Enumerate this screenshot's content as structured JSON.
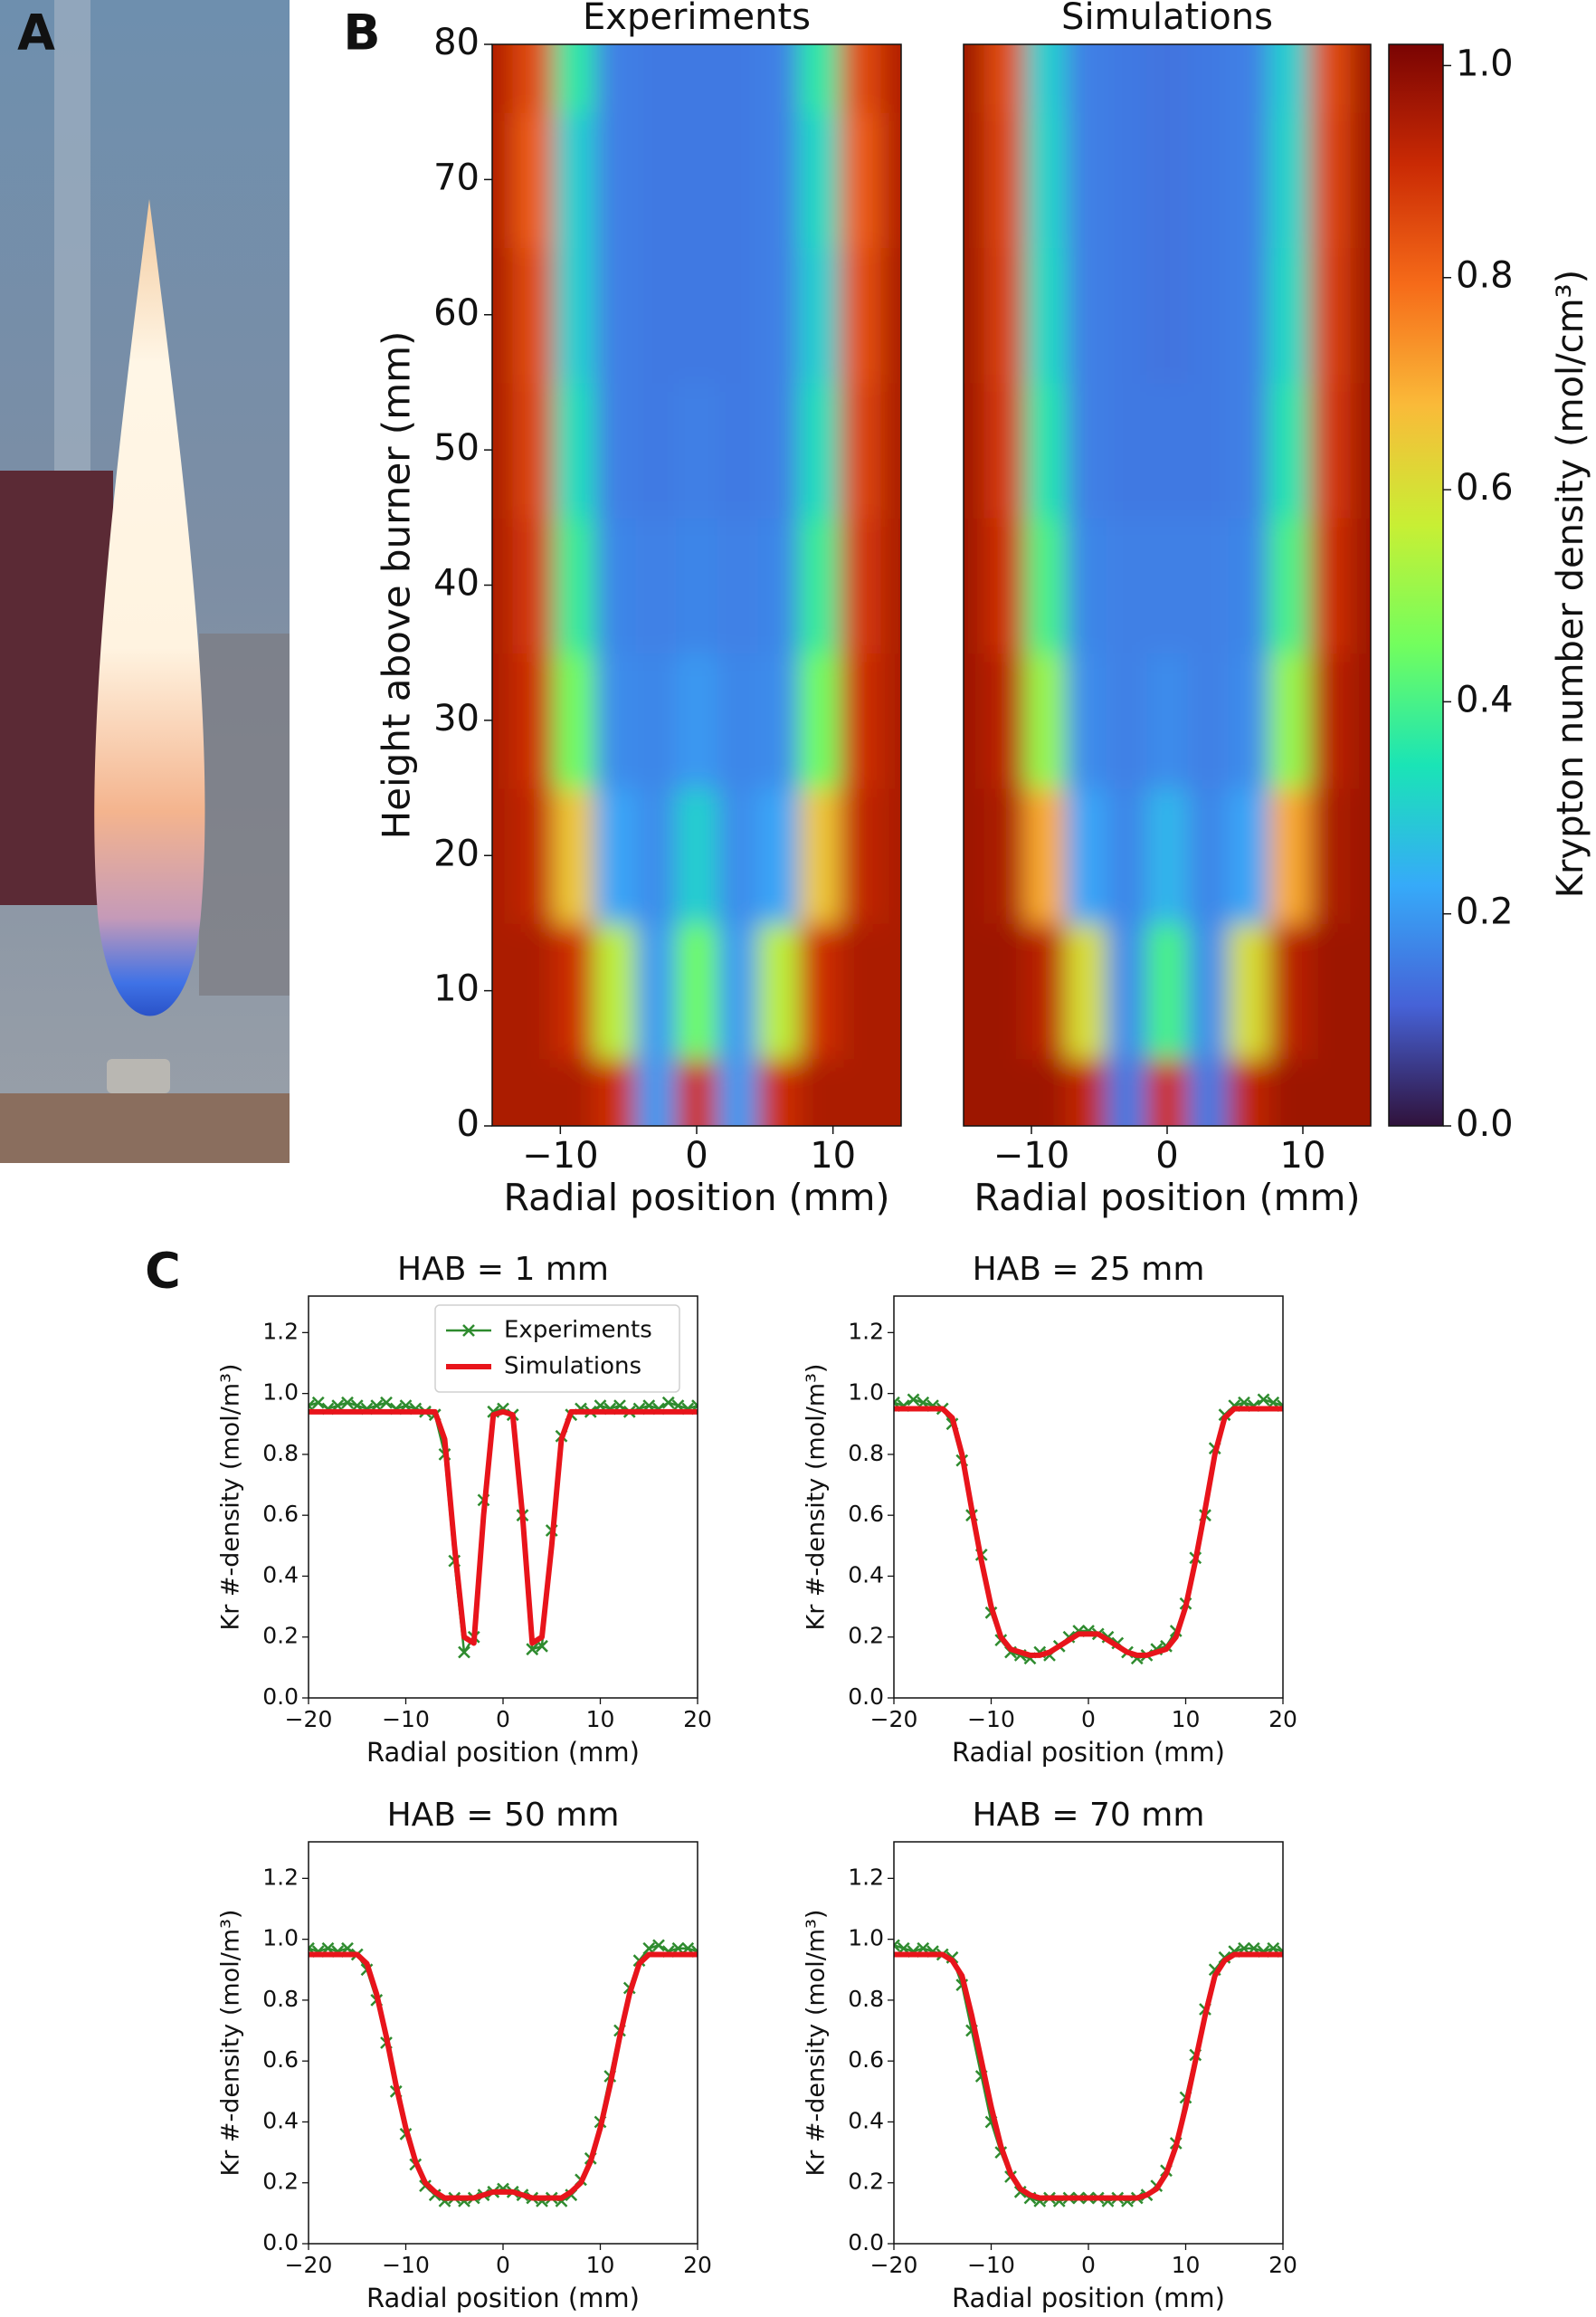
{
  "panel_labels": [
    "A",
    "B",
    "C"
  ],
  "colorbar": {
    "label": "Krypton number density (mol/cm³)",
    "lim": [
      0,
      1.02
    ],
    "ticks": [
      {
        "value": 0,
        "label": "0.0"
      },
      0.2,
      0.4,
      0.6,
      0.8,
      {
        "value": 1,
        "label": "1.0"
      }
    ],
    "colormap": [
      "#30123b",
      "#4662d7",
      "#36aaf9",
      "#1ae4b6",
      "#72fe5e",
      "#c8ef34",
      "#faba39",
      "#f66b19",
      "#ca2a04",
      "#7a0403"
    ]
  },
  "chart_data": [
    {
      "type": "heatmap",
      "title": "Experiments",
      "xlabel": "Radial position (mm)",
      "ylabel": "Height above burner (mm)",
      "xlim": [
        -15,
        15
      ],
      "ylim": [
        0,
        80
      ],
      "xticks": [
        {
          "value": -10,
          "label": "−10"
        },
        0,
        10
      ],
      "yticks": [
        0,
        10,
        20,
        30,
        40,
        50,
        60,
        70,
        80
      ],
      "x": [
        -15,
        -12,
        -9,
        -6,
        -3,
        0,
        3,
        6,
        9,
        12,
        15
      ],
      "y": [
        0,
        10,
        20,
        30,
        40,
        50,
        60,
        70,
        80
      ],
      "z": [
        [
          0.95,
          0.95,
          0.95,
          0.9,
          0.2,
          0.9,
          0.2,
          0.9,
          0.95,
          0.95,
          0.95
        ],
        [
          0.95,
          0.95,
          0.9,
          0.55,
          0.2,
          0.45,
          0.2,
          0.55,
          0.9,
          0.95,
          0.95
        ],
        [
          0.95,
          0.92,
          0.65,
          0.22,
          0.18,
          0.3,
          0.18,
          0.22,
          0.65,
          0.92,
          0.95
        ],
        [
          0.95,
          0.9,
          0.45,
          0.18,
          0.17,
          0.2,
          0.17,
          0.18,
          0.45,
          0.9,
          0.95
        ],
        [
          0.95,
          0.88,
          0.38,
          0.17,
          0.16,
          0.17,
          0.16,
          0.17,
          0.38,
          0.88,
          0.95
        ],
        [
          0.95,
          0.86,
          0.33,
          0.16,
          0.15,
          0.16,
          0.15,
          0.16,
          0.33,
          0.86,
          0.95
        ],
        [
          0.95,
          0.85,
          0.3,
          0.16,
          0.15,
          0.15,
          0.15,
          0.16,
          0.3,
          0.84,
          0.95
        ],
        [
          0.94,
          0.82,
          0.3,
          0.16,
          0.15,
          0.15,
          0.15,
          0.16,
          0.32,
          0.82,
          0.94
        ],
        [
          0.94,
          0.85,
          0.36,
          0.16,
          0.15,
          0.15,
          0.15,
          0.16,
          0.36,
          0.85,
          0.94
        ]
      ]
    },
    {
      "type": "heatmap",
      "title": "Simulations",
      "xlabel": "Radial position (mm)",
      "xlim": [
        -15,
        15
      ],
      "ylim": [
        0,
        80
      ],
      "xticks": [
        {
          "value": -10,
          "label": "−10"
        },
        0,
        10
      ],
      "x": [
        -15,
        -12,
        -9,
        -6,
        -3,
        0,
        3,
        6,
        9,
        12,
        15
      ],
      "y": [
        0,
        10,
        20,
        30,
        40,
        50,
        60,
        70,
        80
      ],
      "z": [
        [
          0.97,
          0.97,
          0.97,
          0.92,
          0.15,
          0.9,
          0.15,
          0.92,
          0.97,
          0.97,
          0.97
        ],
        [
          0.97,
          0.97,
          0.93,
          0.6,
          0.18,
          0.4,
          0.18,
          0.6,
          0.93,
          0.97,
          0.97
        ],
        [
          0.97,
          0.95,
          0.7,
          0.22,
          0.17,
          0.25,
          0.17,
          0.22,
          0.7,
          0.95,
          0.97
        ],
        [
          0.97,
          0.93,
          0.5,
          0.18,
          0.16,
          0.18,
          0.16,
          0.18,
          0.5,
          0.93,
          0.97
        ],
        [
          0.97,
          0.9,
          0.4,
          0.17,
          0.16,
          0.16,
          0.16,
          0.17,
          0.4,
          0.9,
          0.97
        ],
        [
          0.97,
          0.88,
          0.35,
          0.16,
          0.15,
          0.15,
          0.15,
          0.16,
          0.35,
          0.88,
          0.97
        ],
        [
          0.97,
          0.87,
          0.32,
          0.16,
          0.15,
          0.14,
          0.15,
          0.16,
          0.32,
          0.87,
          0.97
        ],
        [
          0.97,
          0.86,
          0.31,
          0.16,
          0.15,
          0.14,
          0.15,
          0.16,
          0.31,
          0.86,
          0.97
        ],
        [
          0.97,
          0.85,
          0.3,
          0.16,
          0.15,
          0.14,
          0.15,
          0.16,
          0.3,
          0.85,
          0.97
        ]
      ]
    },
    {
      "type": "line",
      "title": "HAB = 1 mm",
      "xlabel": "Radial position (mm)",
      "ylabel": "Kr #-density (mol/m³)",
      "legend": "upper center",
      "xlim": [
        -20,
        20
      ],
      "ylim": [
        0,
        1.32
      ],
      "xticks": [
        {
          "value": -20,
          "label": "−20"
        },
        {
          "value": -10,
          "label": "−10"
        },
        0,
        10,
        20
      ],
      "yticks": [
        {
          "value": 0,
          "label": "0.0"
        },
        0.2,
        0.4,
        0.6,
        0.8,
        {
          "value": 1,
          "label": "1.0"
        },
        1.2
      ],
      "x": [
        -20,
        -19,
        -18,
        -17,
        -16,
        -15,
        -14,
        -13,
        -12,
        -11,
        -10,
        -9,
        -8,
        -7,
        -6,
        -5,
        -4,
        -3,
        -2,
        -1,
        0,
        1,
        2,
        3,
        4,
        5,
        6,
        7,
        8,
        9,
        10,
        11,
        12,
        13,
        14,
        15,
        16,
        17,
        18,
        19,
        20
      ],
      "series": [
        {
          "name": "Experiments",
          "color": "#2e8b2e",
          "marker": "x",
          "values": [
            0.96,
            0.97,
            0.95,
            0.96,
            0.97,
            0.96,
            0.95,
            0.96,
            0.97,
            0.95,
            0.96,
            0.95,
            0.94,
            0.93,
            0.8,
            0.45,
            0.15,
            0.2,
            0.65,
            0.94,
            0.95,
            0.93,
            0.6,
            0.16,
            0.17,
            0.55,
            0.86,
            0.93,
            0.95,
            0.94,
            0.96,
            0.95,
            0.96,
            0.94,
            0.95,
            0.96,
            0.95,
            0.97,
            0.96,
            0.95,
            0.96
          ]
        },
        {
          "name": "Simulations",
          "color": "#e8141b",
          "values": [
            0.94,
            0.94,
            0.94,
            0.94,
            0.94,
            0.94,
            0.94,
            0.94,
            0.94,
            0.94,
            0.94,
            0.94,
            0.94,
            0.94,
            0.85,
            0.5,
            0.2,
            0.18,
            0.6,
            0.93,
            0.94,
            0.93,
            0.6,
            0.18,
            0.2,
            0.5,
            0.85,
            0.94,
            0.94,
            0.94,
            0.94,
            0.94,
            0.94,
            0.94,
            0.94,
            0.94,
            0.94,
            0.94,
            0.94,
            0.94,
            0.94
          ]
        }
      ]
    },
    {
      "type": "line",
      "title": "HAB = 25 mm",
      "xlabel": "Radial position (mm)",
      "ylabel": "Kr #-density (mol/m³)",
      "xlim": [
        -20,
        20
      ],
      "ylim": [
        0,
        1.32
      ],
      "xticks": [
        {
          "value": -20,
          "label": "−20"
        },
        {
          "value": -10,
          "label": "−10"
        },
        0,
        10,
        20
      ],
      "yticks": [
        {
          "value": 0,
          "label": "0.0"
        },
        0.2,
        0.4,
        0.6,
        0.8,
        {
          "value": 1,
          "label": "1.0"
        },
        1.2
      ],
      "x": [
        -20,
        -19,
        -18,
        -17,
        -16,
        -15,
        -14,
        -13,
        -12,
        -11,
        -10,
        -9,
        -8,
        -7,
        -6,
        -5,
        -4,
        -3,
        -2,
        -1,
        0,
        1,
        2,
        3,
        4,
        5,
        6,
        7,
        8,
        9,
        10,
        11,
        12,
        13,
        14,
        15,
        16,
        17,
        18,
        19,
        20
      ],
      "series": [
        {
          "name": "Experiments",
          "color": "#2e8b2e",
          "marker": "x",
          "values": [
            0.97,
            0.96,
            0.98,
            0.97,
            0.96,
            0.95,
            0.9,
            0.78,
            0.6,
            0.47,
            0.28,
            0.19,
            0.15,
            0.14,
            0.13,
            0.15,
            0.14,
            0.17,
            0.2,
            0.22,
            0.22,
            0.21,
            0.2,
            0.18,
            0.15,
            0.13,
            0.14,
            0.16,
            0.17,
            0.22,
            0.31,
            0.46,
            0.6,
            0.82,
            0.93,
            0.96,
            0.97,
            0.96,
            0.98,
            0.97,
            0.96
          ]
        },
        {
          "name": "Simulations",
          "color": "#e8141b",
          "values": [
            0.95,
            0.95,
            0.95,
            0.95,
            0.95,
            0.95,
            0.92,
            0.8,
            0.62,
            0.45,
            0.3,
            0.2,
            0.16,
            0.15,
            0.14,
            0.14,
            0.15,
            0.17,
            0.19,
            0.21,
            0.21,
            0.21,
            0.19,
            0.17,
            0.15,
            0.14,
            0.14,
            0.15,
            0.16,
            0.2,
            0.3,
            0.45,
            0.62,
            0.8,
            0.92,
            0.95,
            0.95,
            0.95,
            0.95,
            0.95,
            0.95
          ]
        }
      ]
    },
    {
      "type": "line",
      "title": "HAB = 50 mm",
      "xlabel": "Radial position (mm)",
      "ylabel": "Kr #-density (mol/m³)",
      "xlim": [
        -20,
        20
      ],
      "ylim": [
        0,
        1.32
      ],
      "xticks": [
        {
          "value": -20,
          "label": "−20"
        },
        {
          "value": -10,
          "label": "−10"
        },
        0,
        10,
        20
      ],
      "yticks": [
        {
          "value": 0,
          "label": "0.0"
        },
        0.2,
        0.4,
        0.6,
        0.8,
        {
          "value": 1,
          "label": "1.0"
        },
        1.2
      ],
      "x": [
        -20,
        -19,
        -18,
        -17,
        -16,
        -15,
        -14,
        -13,
        -12,
        -11,
        -10,
        -9,
        -8,
        -7,
        -6,
        -5,
        -4,
        -3,
        -2,
        -1,
        0,
        1,
        2,
        3,
        4,
        5,
        6,
        7,
        8,
        9,
        10,
        11,
        12,
        13,
        14,
        15,
        16,
        17,
        18,
        19,
        20
      ],
      "series": [
        {
          "name": "Experiments",
          "color": "#2e8b2e",
          "marker": "x",
          "values": [
            0.97,
            0.96,
            0.97,
            0.96,
            0.97,
            0.95,
            0.9,
            0.8,
            0.66,
            0.5,
            0.36,
            0.26,
            0.19,
            0.16,
            0.14,
            0.15,
            0.14,
            0.15,
            0.16,
            0.17,
            0.18,
            0.17,
            0.16,
            0.15,
            0.14,
            0.15,
            0.14,
            0.16,
            0.21,
            0.28,
            0.4,
            0.55,
            0.7,
            0.84,
            0.93,
            0.97,
            0.98,
            0.96,
            0.97,
            0.97,
            0.96
          ]
        },
        {
          "name": "Simulations",
          "color": "#e8141b",
          "values": [
            0.95,
            0.95,
            0.95,
            0.95,
            0.95,
            0.95,
            0.92,
            0.82,
            0.68,
            0.52,
            0.38,
            0.27,
            0.2,
            0.17,
            0.15,
            0.15,
            0.15,
            0.15,
            0.16,
            0.17,
            0.17,
            0.17,
            0.16,
            0.15,
            0.15,
            0.15,
            0.15,
            0.17,
            0.2,
            0.27,
            0.38,
            0.52,
            0.68,
            0.82,
            0.92,
            0.95,
            0.95,
            0.95,
            0.95,
            0.95,
            0.95
          ]
        }
      ]
    },
    {
      "type": "line",
      "title": "HAB = 70 mm",
      "xlabel": "Radial position (mm)",
      "ylabel": "Kr #-density (mol/m³)",
      "xlim": [
        -20,
        20
      ],
      "ylim": [
        0,
        1.32
      ],
      "xticks": [
        {
          "value": -20,
          "label": "−20"
        },
        {
          "value": -10,
          "label": "−10"
        },
        0,
        10,
        20
      ],
      "yticks": [
        {
          "value": 0,
          "label": "0.0"
        },
        0.2,
        0.4,
        0.6,
        0.8,
        {
          "value": 1,
          "label": "1.0"
        },
        1.2
      ],
      "x": [
        -20,
        -19,
        -18,
        -17,
        -16,
        -15,
        -14,
        -13,
        -12,
        -11,
        -10,
        -9,
        -8,
        -7,
        -6,
        -5,
        -4,
        -3,
        -2,
        -1,
        0,
        1,
        2,
        3,
        4,
        5,
        6,
        7,
        8,
        9,
        10,
        11,
        12,
        13,
        14,
        15,
        16,
        17,
        18,
        19,
        20
      ],
      "series": [
        {
          "name": "Experiments",
          "color": "#2e8b2e",
          "marker": "x",
          "values": [
            0.98,
            0.97,
            0.96,
            0.97,
            0.96,
            0.95,
            0.94,
            0.85,
            0.7,
            0.55,
            0.4,
            0.3,
            0.22,
            0.17,
            0.15,
            0.14,
            0.15,
            0.14,
            0.15,
            0.15,
            0.15,
            0.15,
            0.14,
            0.15,
            0.14,
            0.15,
            0.16,
            0.19,
            0.24,
            0.33,
            0.48,
            0.62,
            0.77,
            0.9,
            0.94,
            0.96,
            0.97,
            0.97,
            0.96,
            0.97,
            0.96
          ]
        },
        {
          "name": "Simulations",
          "color": "#e8141b",
          "values": [
            0.95,
            0.95,
            0.95,
            0.95,
            0.95,
            0.95,
            0.93,
            0.88,
            0.75,
            0.6,
            0.45,
            0.32,
            0.23,
            0.18,
            0.16,
            0.15,
            0.15,
            0.15,
            0.15,
            0.15,
            0.15,
            0.15,
            0.15,
            0.15,
            0.15,
            0.15,
            0.16,
            0.18,
            0.23,
            0.32,
            0.45,
            0.6,
            0.75,
            0.88,
            0.93,
            0.95,
            0.95,
            0.95,
            0.95,
            0.95,
            0.95
          ]
        }
      ]
    }
  ]
}
